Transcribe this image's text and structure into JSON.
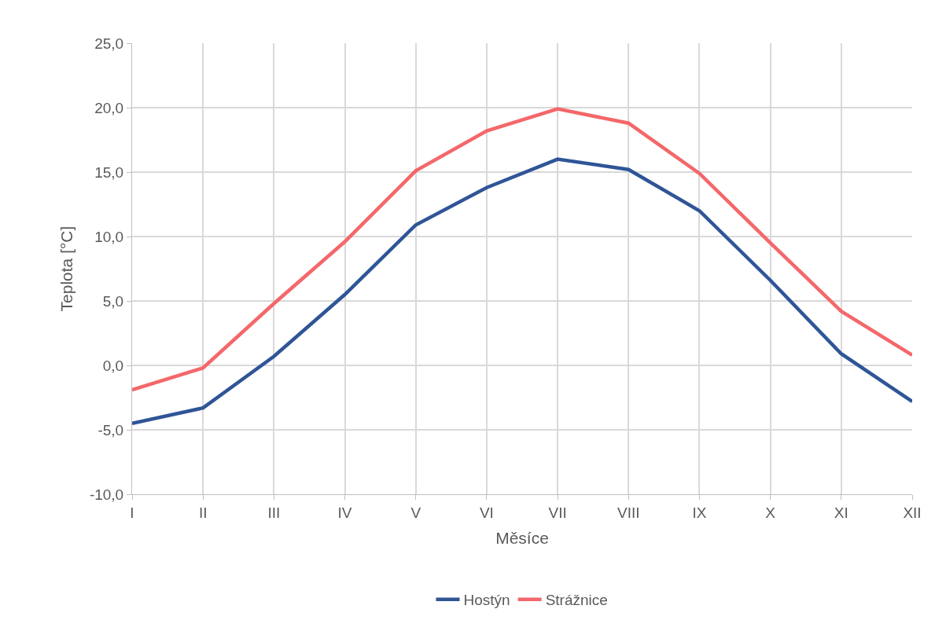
{
  "chart_data": {
    "type": "line",
    "xlabel": "Měsíce",
    "ylabel": "Teplota [°C]",
    "categories": [
      "I",
      "II",
      "III",
      "IV",
      "V",
      "VI",
      "VII",
      "VIII",
      "IX",
      "X",
      "XI",
      "XII"
    ],
    "series": [
      {
        "name": "Hostýn",
        "color": "#2f5597",
        "values": [
          -4.5,
          -3.3,
          0.7,
          5.5,
          10.9,
          13.8,
          16.0,
          15.2,
          12.0,
          6.6,
          0.9,
          -2.8
        ]
      },
      {
        "name": "Strážnice",
        "color": "#f4676a",
        "values": [
          -1.9,
          -0.2,
          4.8,
          9.6,
          15.1,
          18.2,
          19.9,
          18.8,
          14.9,
          9.5,
          4.2,
          0.8
        ]
      }
    ],
    "ylim": [
      -10,
      25
    ],
    "yticks": [
      {
        "value": -10,
        "label": "-10,0"
      },
      {
        "value": -5,
        "label": "-5,0"
      },
      {
        "value": 0,
        "label": "0,0"
      },
      {
        "value": 5,
        "label": "5,0"
      },
      {
        "value": 10,
        "label": "10,0"
      },
      {
        "value": 15,
        "label": "15,0"
      },
      {
        "value": 20,
        "label": "20,0"
      },
      {
        "value": 25,
        "label": "25,0"
      }
    ],
    "grid": true,
    "legend": "bottom",
    "marker": "none",
    "line_style": "solid"
  }
}
